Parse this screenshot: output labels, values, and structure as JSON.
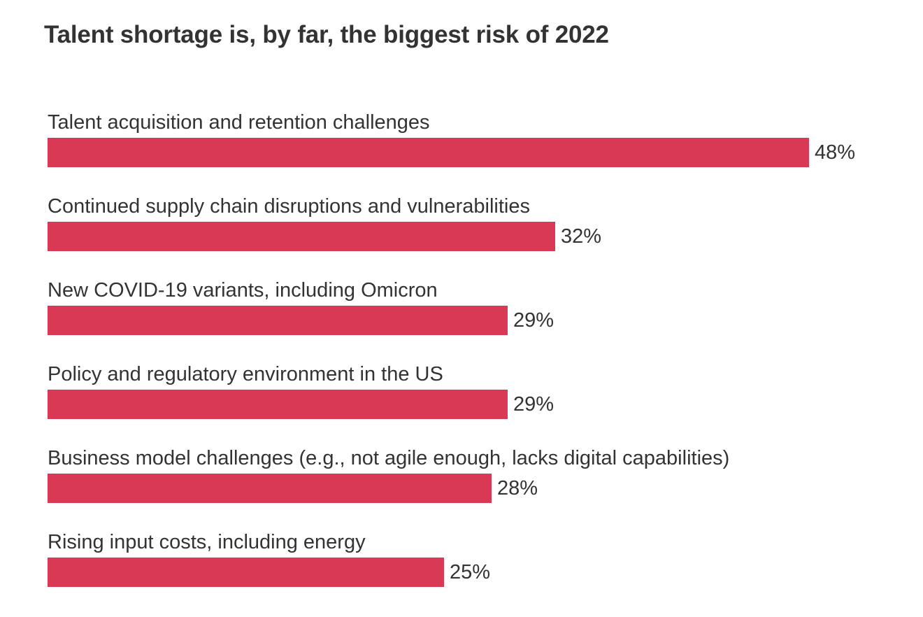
{
  "chart_data": {
    "type": "bar",
    "orientation": "horizontal",
    "title": "Talent shortage is, by far, the biggest risk of 2022",
    "categories": [
      "Talent acquisition and retention challenges",
      "Continued supply chain disruptions and vulnerabilities",
      "New COVID-19 variants, including Omicron",
      "Policy and regulatory environment in the US",
      "Business model challenges (e.g., not agile enough, lacks digital capabilities)",
      "Rising input costs, including energy"
    ],
    "values": [
      48,
      32,
      29,
      29,
      28,
      25
    ],
    "value_labels": [
      "48%",
      "32%",
      "29%",
      "29%",
      "28%",
      "25%"
    ],
    "unit": "%",
    "xlim": [
      0,
      48
    ],
    "grid": false,
    "legend": "none",
    "bar_color": "#d93954"
  }
}
